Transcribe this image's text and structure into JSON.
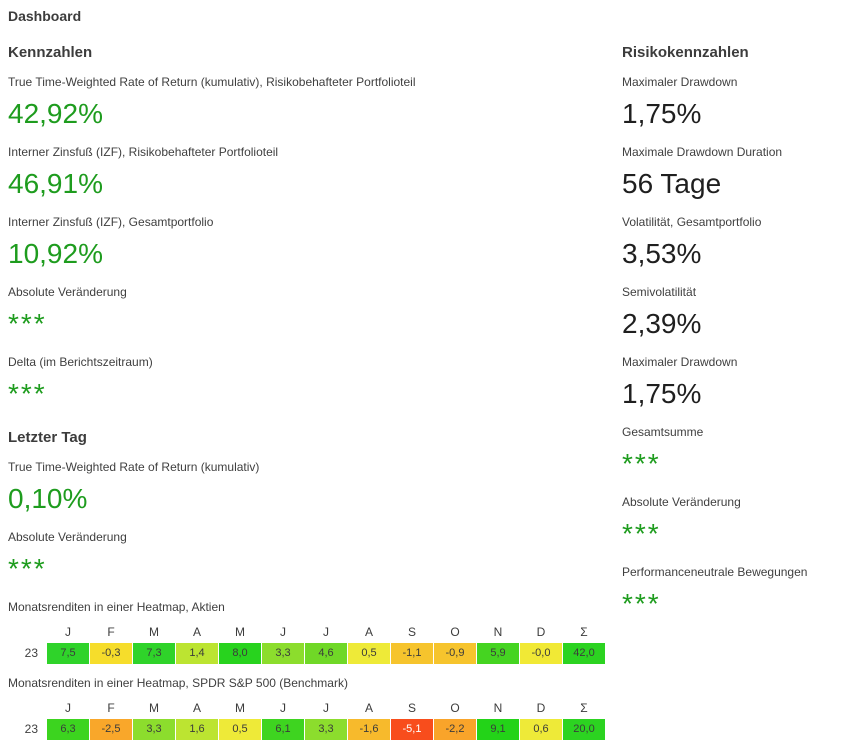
{
  "title": "Dashboard",
  "colors": {
    "value_green": "#1e9c1e",
    "value_dark": "#1f1f1f",
    "heading_text": "#3c3c3c",
    "label_text": "#3f3f3f",
    "cell_text": "#3b3b3b",
    "cell_text_light": "#ffffff"
  },
  "kennzahlen": {
    "heading": "Kennzahlen",
    "metrics": [
      {
        "label": "True Time-Weighted Rate of Return (kumulativ), Risikobehafteter Portfolioteil",
        "value": "42,92%"
      },
      {
        "label": "Interner Zinsfuß (IZF), Risikobehafteter Portfolioteil",
        "value": "46,91%"
      },
      {
        "label": "Interner Zinsfuß (IZF), Gesamtportfolio",
        "value": "10,92%"
      },
      {
        "label": "Absolute Veränderung",
        "value": "***"
      },
      {
        "label": "Delta (im Berichtszeitraum)",
        "value": "***"
      }
    ]
  },
  "letzter_tag": {
    "heading": "Letzter Tag",
    "metrics": [
      {
        "label": "True Time-Weighted Rate of Return (kumulativ)",
        "value": "0,10%"
      },
      {
        "label": "Absolute Veränderung",
        "value": "***"
      }
    ]
  },
  "heatmaps": [
    {
      "title": "Monatsrenditen in einer Heatmap, Aktien",
      "row_label": "23",
      "months": [
        "J",
        "F",
        "M",
        "A",
        "M",
        "J",
        "J",
        "A",
        "S",
        "O",
        "N",
        "D",
        "Σ"
      ],
      "cells": [
        {
          "v": "7,5",
          "bg": "#2fd32a"
        },
        {
          "v": "-0,3",
          "bg": "#f6dd2b"
        },
        {
          "v": "7,3",
          "bg": "#2fd32a"
        },
        {
          "v": "1,4",
          "bg": "#bce431"
        },
        {
          "v": "8,0",
          "bg": "#28d31e"
        },
        {
          "v": "3,3",
          "bg": "#8cdd2d"
        },
        {
          "v": "4,6",
          "bg": "#70d827"
        },
        {
          "v": "0,5",
          "bg": "#eeea38"
        },
        {
          "v": "-1,1",
          "bg": "#f6c42d"
        },
        {
          "v": "-0,9",
          "bg": "#f6c42d"
        },
        {
          "v": "5,9",
          "bg": "#45d421"
        },
        {
          "v": "-0,0",
          "bg": "#f1e935"
        },
        {
          "v": "42,0",
          "bg": "#2cd321"
        }
      ]
    },
    {
      "title": "Monatsrenditen in einer Heatmap, SPDR S&P 500 (Benchmark)",
      "row_label": "23",
      "months": [
        "J",
        "F",
        "M",
        "A",
        "M",
        "J",
        "J",
        "A",
        "S",
        "O",
        "N",
        "D",
        "Σ"
      ],
      "cells": [
        {
          "v": "6,3",
          "bg": "#3cd41f"
        },
        {
          "v": "-2,5",
          "bg": "#f9a72a"
        },
        {
          "v": "3,3",
          "bg": "#8cdd2d"
        },
        {
          "v": "1,6",
          "bg": "#bce431"
        },
        {
          "v": "0,5",
          "bg": "#eeea38"
        },
        {
          "v": "6,1",
          "bg": "#3ed420"
        },
        {
          "v": "3,3",
          "bg": "#8cdd2d"
        },
        {
          "v": "-1,6",
          "bg": "#f7ba2c"
        },
        {
          "v": "-5,1",
          "bg": "#f84d1c",
          "fg": "#ffffff"
        },
        {
          "v": "-2,2",
          "bg": "#f9a42a"
        },
        {
          "v": "9,1",
          "bg": "#23d318"
        },
        {
          "v": "0,6",
          "bg": "#eeea38"
        },
        {
          "v": "20,0",
          "bg": "#2cd321"
        }
      ]
    }
  ],
  "risiko": {
    "heading": "Risikokennzahlen",
    "metrics": [
      {
        "label": "Maximaler Drawdown",
        "value": "1,75%"
      },
      {
        "label": "Maximale Drawdown Duration",
        "value": "56 Tage"
      },
      {
        "label": "Volatilität, Gesamtportfolio",
        "value": "3,53%"
      },
      {
        "label": "Semivolatilität",
        "value": "2,39%"
      },
      {
        "label": "Maximaler Drawdown",
        "value": "1,75%"
      },
      {
        "label": "Gesamtsumme",
        "value": "***"
      },
      {
        "label": "Absolute Veränderung",
        "value": "***"
      },
      {
        "label": "Performanceneutrale Bewegungen",
        "value": "***"
      }
    ]
  },
  "chart_data": [
    {
      "type": "heatmap",
      "title": "Monatsrenditen in einer Heatmap, Aktien",
      "rows": [
        "23"
      ],
      "columns": [
        "J",
        "F",
        "M",
        "A",
        "M",
        "J",
        "J",
        "A",
        "S",
        "O",
        "N",
        "D",
        "Σ"
      ],
      "values": [
        [
          7.5,
          -0.3,
          7.3,
          1.4,
          8.0,
          3.3,
          4.6,
          0.5,
          -1.1,
          -0.9,
          5.9,
          -0.0,
          42.0
        ]
      ],
      "legend_position": "none",
      "color_scale": "red-yellow-green"
    },
    {
      "type": "heatmap",
      "title": "Monatsrenditen in einer Heatmap, SPDR S&P 500 (Benchmark)",
      "rows": [
        "23"
      ],
      "columns": [
        "J",
        "F",
        "M",
        "A",
        "M",
        "J",
        "J",
        "A",
        "S",
        "O",
        "N",
        "D",
        "Σ"
      ],
      "values": [
        [
          6.3,
          -2.5,
          3.3,
          1.6,
          0.5,
          6.1,
          3.3,
          -1.6,
          -5.1,
          -2.2,
          9.1,
          0.6,
          20.0
        ]
      ],
      "legend_position": "none",
      "color_scale": "red-yellow-green"
    }
  ]
}
